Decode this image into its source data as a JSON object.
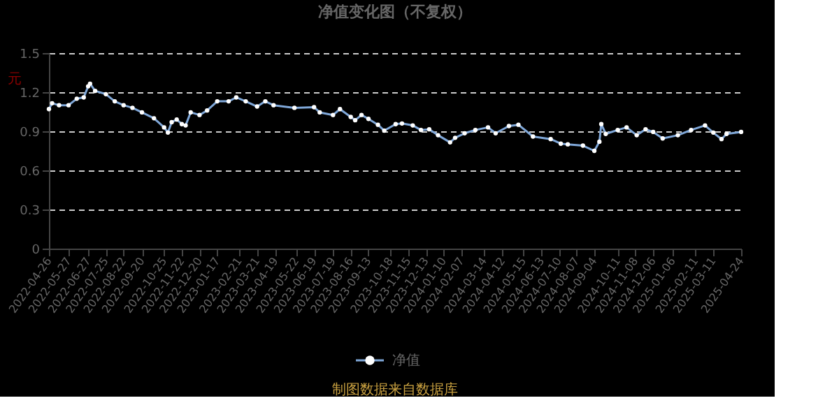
{
  "chart_data": {
    "type": "line",
    "title": "净值变化图（不复权）",
    "ylabel": "元",
    "annotations": [
      "制图数据来自数据库"
    ],
    "x": [
      "2022-04-26",
      "2022-05-01",
      "2022-05-12",
      "2022-05-27",
      "2022-06-09",
      "2022-06-20",
      "2022-06-27",
      "2022-06-30",
      "2022-07-08",
      "2022-07-25",
      "2022-08-08",
      "2022-08-22",
      "2022-09-05",
      "2022-09-20",
      "2022-10-09",
      "2022-10-25",
      "2022-10-31",
      "2022-11-06",
      "2022-11-14",
      "2022-11-22",
      "2022-11-28",
      "2022-12-06",
      "2022-12-20",
      "2023-01-01",
      "2023-01-17",
      "2023-02-04",
      "2023-02-16",
      "2023-03-03",
      "2023-03-21",
      "2023-04-03",
      "2023-04-16",
      "2023-05-19",
      "2023-06-19",
      "2023-06-28",
      "2023-07-19",
      "2023-07-30",
      "2023-08-16",
      "2023-08-23",
      "2023-09-02",
      "2023-09-13",
      "2023-09-28",
      "2023-10-08",
      "2023-10-26",
      "2023-11-05",
      "2023-11-22",
      "2023-12-05",
      "2023-12-18",
      "2024-01-01",
      "2024-01-20",
      "2024-01-28",
      "2024-02-12",
      "2024-02-29",
      "2024-03-20",
      "2024-04-01",
      "2024-04-22",
      "2024-05-07",
      "2024-05-30",
      "2024-06-27",
      "2024-07-13",
      "2024-07-24",
      "2024-08-17",
      "2024-09-04",
      "2024-09-12",
      "2024-09-15",
      "2024-09-22",
      "2024-10-11",
      "2024-10-25",
      "2024-11-10",
      "2024-11-24",
      "2024-12-06",
      "2024-12-21",
      "2025-01-14",
      "2025-02-04",
      "2025-02-26",
      "2025-03-11",
      "2025-03-24",
      "2025-04-01",
      "2025-04-24"
    ],
    "series": [
      {
        "name": "净值",
        "color": "#7fa7d8",
        "values": [
          1.07,
          1.115,
          1.1,
          1.1,
          1.15,
          1.16,
          1.245,
          1.265,
          1.21,
          1.185,
          1.13,
          1.1,
          1.08,
          1.045,
          1.0,
          0.93,
          0.89,
          0.97,
          0.99,
          0.955,
          0.945,
          1.045,
          1.025,
          1.06,
          1.13,
          1.13,
          1.16,
          1.13,
          1.09,
          1.13,
          1.1,
          1.08,
          1.085,
          1.045,
          1.025,
          1.07,
          1.01,
          0.985,
          1.025,
          0.995,
          0.95,
          0.905,
          0.955,
          0.96,
          0.945,
          0.91,
          0.915,
          0.87,
          0.815,
          0.85,
          0.885,
          0.91,
          0.93,
          0.885,
          0.94,
          0.95,
          0.86,
          0.84,
          0.805,
          0.8,
          0.79,
          0.75,
          0.82,
          0.955,
          0.88,
          0.91,
          0.93,
          0.87,
          0.915,
          0.895,
          0.845,
          0.87,
          0.91,
          0.945,
          0.89,
          0.84,
          0.88,
          0.895
        ]
      }
    ],
    "xlim": [
      "2022-04-26",
      "2025-04-24"
    ],
    "xticks": [
      "2022-04-26",
      "2022-05-27",
      "2022-06-27",
      "2022-07-25",
      "2022-08-22",
      "2022-09-20",
      "2022-10-25",
      "2022-11-22",
      "2022-12-20",
      "2023-01-17",
      "2023-02-21",
      "2023-03-21",
      "2023-04-19",
      "2023-05-22",
      "2023-06-19",
      "2023-07-19",
      "2023-08-16",
      "2023-09-13",
      "2023-10-18",
      "2023-11-15",
      "2023-12-13",
      "2024-01-10",
      "2024-02-07",
      "2024-03-14",
      "2024-04-12",
      "2024-05-15",
      "2024-06-13",
      "2024-07-10",
      "2024-08-07",
      "2024-09-04",
      "2024-10-11",
      "2024-11-08",
      "2024-12-06",
      "2025-01-06",
      "2025-02-11",
      "2025-03-11",
      "2025-04-24"
    ],
    "ylim": [
      0,
      1.5
    ],
    "yticks": [
      0,
      0.3,
      0.6,
      0.9,
      1.2,
      1.5
    ],
    "grid": "y",
    "legend": "bottom",
    "marker": "circle",
    "line_style": "solid"
  }
}
